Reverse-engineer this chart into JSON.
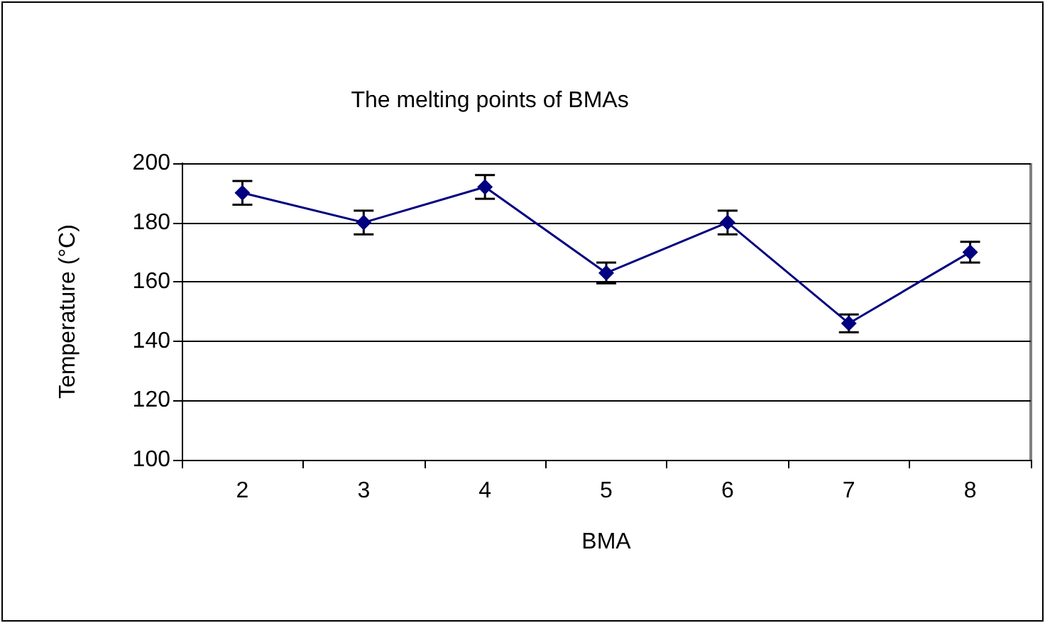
{
  "chart_data": {
    "type": "line",
    "title": "The melting points of BMAs",
    "xlabel": "BMA",
    "ylabel": "Temperature (°C)",
    "categories": [
      "2",
      "3",
      "4",
      "5",
      "6",
      "7",
      "8"
    ],
    "series": [
      {
        "color": "#000080",
        "values": [
          190,
          180,
          192,
          163,
          180,
          146,
          170
        ],
        "errors": [
          4,
          4,
          4,
          3.5,
          4,
          3,
          3.5
        ]
      }
    ],
    "ylim": [
      100,
      200
    ],
    "yticks": [
      100,
      120,
      140,
      160,
      180,
      200
    ],
    "grid": "y",
    "marker": "diamond",
    "line_style": "solid"
  }
}
